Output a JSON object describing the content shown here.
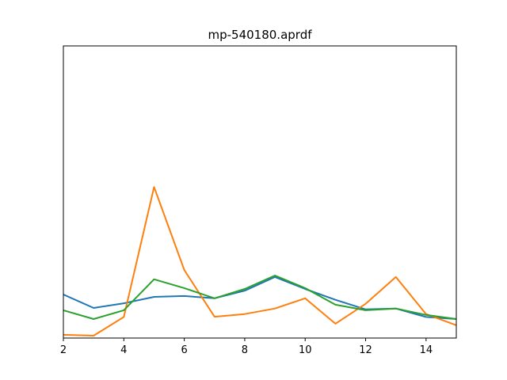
{
  "chart_data": {
    "type": "line",
    "title": "mp-540180.aprdf",
    "xlabel": "",
    "ylabel": "",
    "xlim": [
      2,
      15
    ],
    "ylim": [
      0,
      1
    ],
    "x_ticks": [
      "2",
      "4",
      "6",
      "8",
      "10",
      "12",
      "14"
    ],
    "y_ticks_shown": false,
    "grid": false,
    "legend": "none",
    "x": [
      2,
      3,
      4,
      5,
      6,
      7,
      8,
      9,
      10,
      11,
      12,
      13,
      14,
      15
    ],
    "series": [
      {
        "color": "#1f77b4",
        "values": [
          0.149,
          0.103,
          0.119,
          0.141,
          0.144,
          0.136,
          0.162,
          0.209,
          0.168,
          0.131,
          0.098,
          0.101,
          0.072,
          0.065
        ]
      },
      {
        "color": "#ff7f0e",
        "values": [
          0.011,
          0.008,
          0.072,
          0.517,
          0.233,
          0.073,
          0.082,
          0.101,
          0.136,
          0.049,
          0.117,
          0.209,
          0.082,
          0.044
        ]
      },
      {
        "color": "#2ca02c",
        "values": [
          0.095,
          0.065,
          0.095,
          0.201,
          0.171,
          0.136,
          0.168,
          0.214,
          0.171,
          0.114,
          0.095,
          0.101,
          0.079,
          0.065
        ]
      }
    ]
  }
}
